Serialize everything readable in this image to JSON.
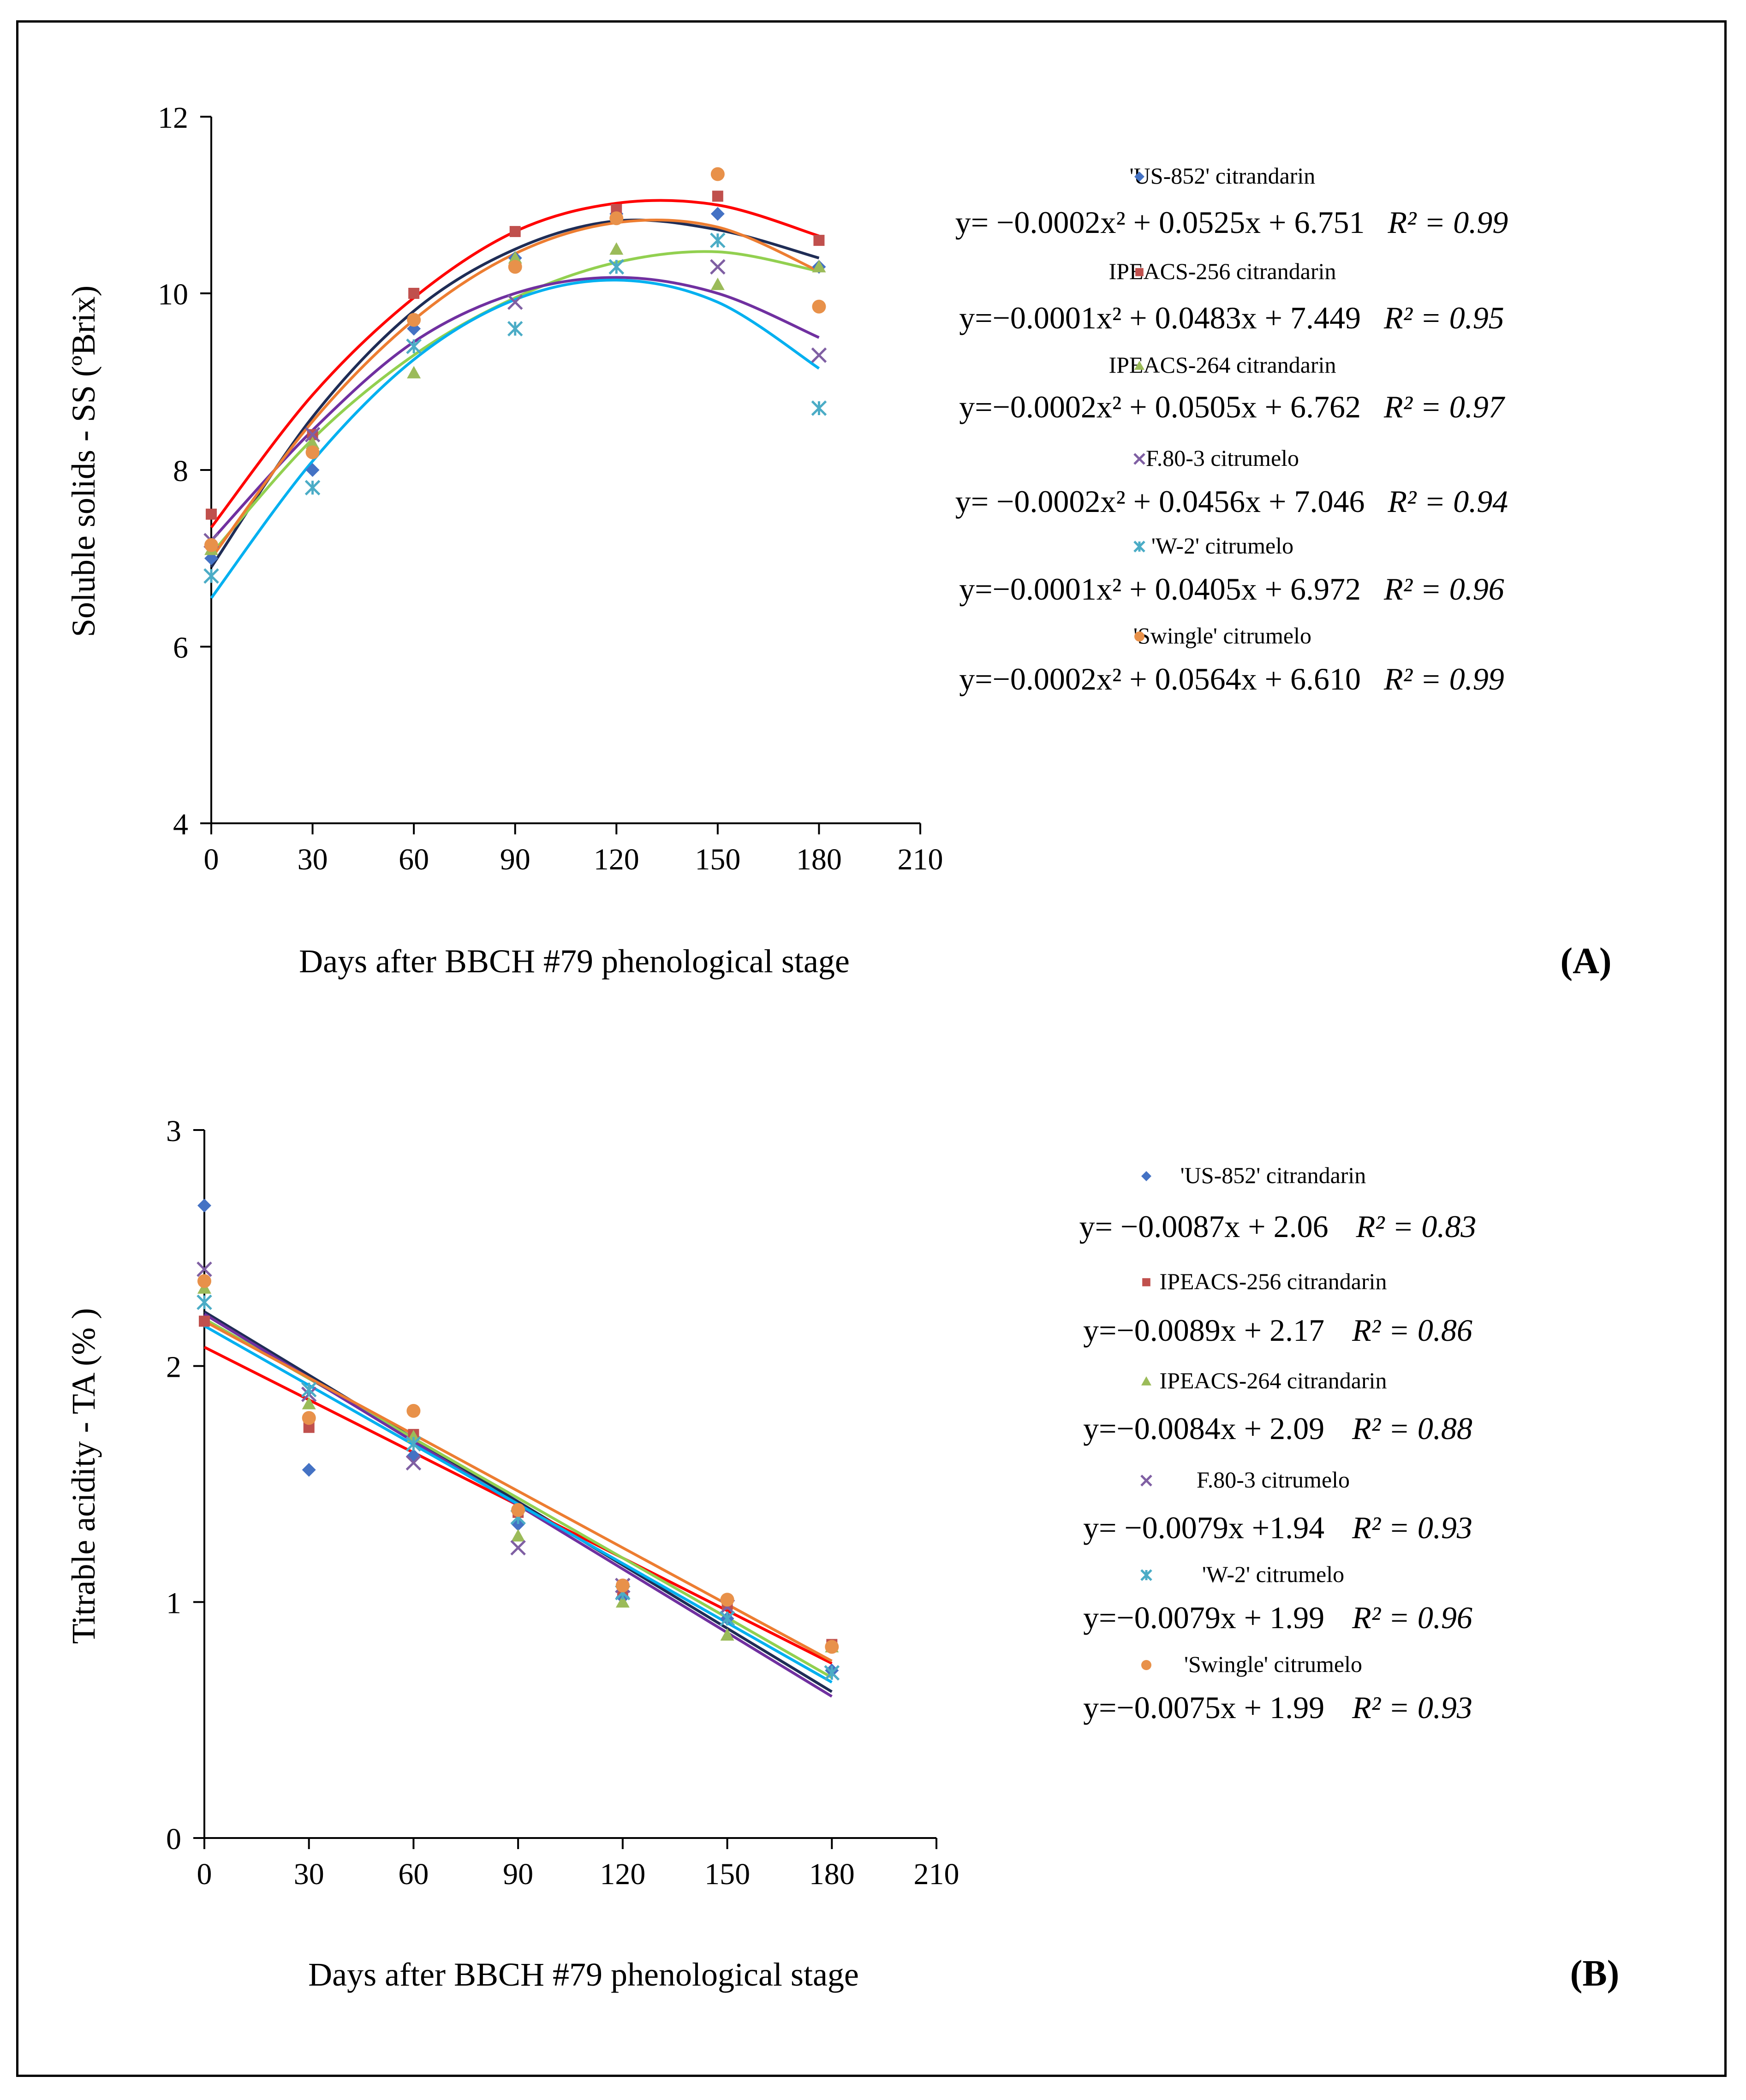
{
  "figure": {
    "panels": [
      {
        "label": "(A)",
        "title": "",
        "xlabel": "Days after BBCH #79 phenological stage",
        "ylabel": "Soluble solids - SS (ºBrix)",
        "xlim": [
          0,
          210
        ],
        "ylim": [
          4,
          12
        ],
        "xticks": [
          "0",
          "30",
          "60",
          "90",
          "120",
          "150",
          "180",
          "210"
        ],
        "yticks": [
          "4",
          "6",
          "8",
          "10",
          "12"
        ],
        "legend": [
          {
            "name": "'US-852' citrandarin",
            "equation": "y= −0.0002x² + 0.0525x + 6.751",
            "r2": "R² = 0.99"
          },
          {
            "name": "IPEACS-256 citrandarin",
            "equation": "y=−0.0001x² + 0.0483x + 7.449",
            "r2": "R² = 0.95"
          },
          {
            "name": "IPEACS-264 citrandarin",
            "equation": "y=−0.0002x² + 0.0505x + 6.762",
            "r2": "R² = 0.97"
          },
          {
            "name": "F.80-3 citrumelo",
            "equation": "y= −0.0002x² + 0.0456x + 7.046",
            "r2": "R² = 0.94"
          },
          {
            "name": "'W-2' citrumelo",
            "equation": "y=−0.0001x² + 0.0405x + 6.972",
            "r2": "R² = 0.96"
          },
          {
            "name": "'Swingle' citrumelo",
            "equation": "y=−0.0002x² + 0.0564x + 6.610",
            "r2": "R² = 0.99"
          }
        ]
      },
      {
        "label": "(B)",
        "title": "",
        "xlabel": "Days after BBCH #79 phenological stage",
        "ylabel": "Titrable acidity - TA (% )",
        "xlim": [
          0,
          210
        ],
        "ylim": [
          0,
          3
        ],
        "xticks": [
          "0",
          "30",
          "60",
          "90",
          "120",
          "150",
          "180",
          "210"
        ],
        "yticks": [
          "0",
          "1",
          "2",
          "3"
        ],
        "legend": [
          {
            "name": "'US-852' citrandarin",
            "equation": "y= −0.0087x + 2.06",
            "r2": "R² = 0.83"
          },
          {
            "name": "IPEACS-256 citrandarin",
            "equation": "y=−0.0089x + 2.17",
            "r2": "R² = 0.86"
          },
          {
            "name": "IPEACS-264 citrandarin",
            "equation": "y=−0.0084x + 2.09",
            "r2": "R² = 0.88"
          },
          {
            "name": "F.80-3 citrumelo",
            "equation": "y= −0.0079x +1.94",
            "r2": "R² = 0.93"
          },
          {
            "name": "'W-2' citrumelo",
            "equation": "y=−0.0079x + 1.99",
            "r2": "R² = 0.96"
          },
          {
            "name": "'Swingle' citrumelo",
            "equation": "y=−0.0075x + 1.99",
            "r2": "R² = 0.93"
          }
        ]
      }
    ]
  },
  "chart_data": [
    {
      "type": "scatter",
      "panel": "A",
      "title": "",
      "xlabel": "Days after BBCH #79 phenological stage",
      "ylabel": "Soluble solids - SS (ºBrix)",
      "xlim": [
        0,
        210
      ],
      "ylim": [
        4,
        12
      ],
      "grid": false,
      "x": [
        0,
        30,
        60,
        90,
        120,
        150,
        180
      ],
      "series": [
        {
          "name": "'US-852' citrandarin",
          "color": "#4472c4",
          "marker": "diamond",
          "values": [
            7.0,
            8.0,
            9.6,
            10.4,
            10.9,
            10.9,
            10.3
          ],
          "fit": [
            {
              "x": 0,
              "y": 6.9
            },
            {
              "x": 30,
              "y": 8.6
            },
            {
              "x": 60,
              "y": 9.8
            },
            {
              "x": 90,
              "y": 10.5
            },
            {
              "x": 120,
              "y": 10.82
            },
            {
              "x": 150,
              "y": 10.72
            },
            {
              "x": 180,
              "y": 10.4
            }
          ],
          "fit_color": "#1f2d56"
        },
        {
          "name": "IPEACS-256 citrandarin",
          "color": "#c0504d",
          "marker": "square",
          "values": [
            7.5,
            8.4,
            10.0,
            10.7,
            10.95,
            11.1,
            10.6
          ],
          "fit": [
            {
              "x": 0,
              "y": 7.35
            },
            {
              "x": 30,
              "y": 8.85
            },
            {
              "x": 60,
              "y": 9.95
            },
            {
              "x": 90,
              "y": 10.7
            },
            {
              "x": 120,
              "y": 11.02
            },
            {
              "x": 150,
              "y": 11.0
            },
            {
              "x": 180,
              "y": 10.65
            }
          ],
          "fit_color": "#ff0000"
        },
        {
          "name": "IPEACS-264 citrandarin",
          "color": "#9bbb59",
          "marker": "triangle",
          "values": [
            7.1,
            8.3,
            9.1,
            10.4,
            10.5,
            10.1,
            10.3
          ],
          "fit": [
            {
              "x": 0,
              "y": 7.05
            },
            {
              "x": 30,
              "y": 8.35
            },
            {
              "x": 60,
              "y": 9.3
            },
            {
              "x": 90,
              "y": 9.95
            },
            {
              "x": 120,
              "y": 10.35
            },
            {
              "x": 150,
              "y": 10.47
            },
            {
              "x": 180,
              "y": 10.25
            }
          ],
          "fit_color": "#92d050"
        },
        {
          "name": "F.80-3 citrumelo",
          "color": "#7f5fa3",
          "marker": "x",
          "values": [
            7.2,
            8.4,
            9.4,
            9.9,
            10.3,
            10.3,
            9.3
          ],
          "fit": [
            {
              "x": 0,
              "y": 7.2
            },
            {
              "x": 30,
              "y": 8.45
            },
            {
              "x": 60,
              "y": 9.45
            },
            {
              "x": 90,
              "y": 10.0
            },
            {
              "x": 120,
              "y": 10.18
            },
            {
              "x": 150,
              "y": 10.0
            },
            {
              "x": 180,
              "y": 9.5
            }
          ],
          "fit_color": "#7030a0"
        },
        {
          "name": "'W-2' citrumelo",
          "color": "#4bacc6",
          "marker": "star",
          "values": [
            6.8,
            7.8,
            9.4,
            9.6,
            10.3,
            10.6,
            8.7
          ],
          "fit": [
            {
              "x": 0,
              "y": 6.55
            },
            {
              "x": 30,
              "y": 8.1
            },
            {
              "x": 60,
              "y": 9.25
            },
            {
              "x": 90,
              "y": 9.93
            },
            {
              "x": 120,
              "y": 10.15
            },
            {
              "x": 150,
              "y": 9.9
            },
            {
              "x": 180,
              "y": 9.15
            }
          ],
          "fit_color": "#00b0f0"
        },
        {
          "name": "'Swingle' citrumelo",
          "color": "#e8914a",
          "marker": "circle",
          "values": [
            7.15,
            8.2,
            9.7,
            10.3,
            10.85,
            11.35,
            9.85
          ],
          "fit": [
            {
              "x": 0,
              "y": 7.0
            },
            {
              "x": 30,
              "y": 8.55
            },
            {
              "x": 60,
              "y": 9.7
            },
            {
              "x": 90,
              "y": 10.45
            },
            {
              "x": 120,
              "y": 10.8
            },
            {
              "x": 150,
              "y": 10.75
            },
            {
              "x": 180,
              "y": 10.25
            }
          ],
          "fit_color": "#ed7d31"
        }
      ]
    },
    {
      "type": "scatter",
      "panel": "B",
      "title": "",
      "xlabel": "Days after BBCH #79 phenological stage",
      "ylabel": "Titrable acidity - TA (% )",
      "xlim": [
        0,
        210
      ],
      "ylim": [
        0,
        3
      ],
      "grid": false,
      "x": [
        0,
        30,
        60,
        90,
        120,
        150,
        180
      ],
      "series": [
        {
          "name": "'US-852' citrandarin",
          "color": "#4472c4",
          "marker": "diamond",
          "values": [
            2.68,
            1.56,
            1.62,
            1.33,
            1.02,
            0.93,
            0.71
          ],
          "fit": [
            {
              "x": 0,
              "y": 2.23
            },
            {
              "x": 180,
              "y": 0.62
            }
          ],
          "fit_color": "#1f2d56"
        },
        {
          "name": "IPEACS-256 citrandarin",
          "color": "#c0504d",
          "marker": "square",
          "values": [
            2.19,
            1.74,
            1.71,
            1.38,
            1.05,
            0.99,
            0.82
          ],
          "fit": [
            {
              "x": 0,
              "y": 2.08
            },
            {
              "x": 180,
              "y": 0.74
            }
          ],
          "fit_color": "#ff0000"
        },
        {
          "name": "IPEACS-264 citrandarin",
          "color": "#9bbb59",
          "marker": "triangle",
          "values": [
            2.33,
            1.84,
            1.7,
            1.28,
            1.0,
            0.86,
            0.81
          ],
          "fit": [
            {
              "x": 0,
              "y": 2.2
            },
            {
              "x": 180,
              "y": 0.68
            }
          ],
          "fit_color": "#92d050"
        },
        {
          "name": "F.80-3 citrumelo",
          "color": "#7f5fa3",
          "marker": "x",
          "values": [
            2.41,
            1.88,
            1.59,
            1.23,
            1.07,
            0.98,
            0.7
          ],
          "fit": [
            {
              "x": 0,
              "y": 2.22
            },
            {
              "x": 180,
              "y": 0.6
            }
          ],
          "fit_color": "#7030a0"
        },
        {
          "name": "'W-2' citrumelo",
          "color": "#4bacc6",
          "marker": "star",
          "values": [
            2.27,
            1.9,
            1.67,
            1.36,
            1.04,
            0.93,
            0.7
          ],
          "fit": [
            {
              "x": 0,
              "y": 2.17
            },
            {
              "x": 180,
              "y": 0.66
            }
          ],
          "fit_color": "#00b0f0"
        },
        {
          "name": "'Swingle' citrumelo",
          "color": "#e8914a",
          "marker": "circle",
          "values": [
            2.36,
            1.78,
            1.81,
            1.39,
            1.07,
            1.01,
            0.81
          ],
          "fit": [
            {
              "x": 0,
              "y": 2.19
            },
            {
              "x": 180,
              "y": 0.75
            }
          ],
          "fit_color": "#ed7d31"
        }
      ]
    }
  ]
}
